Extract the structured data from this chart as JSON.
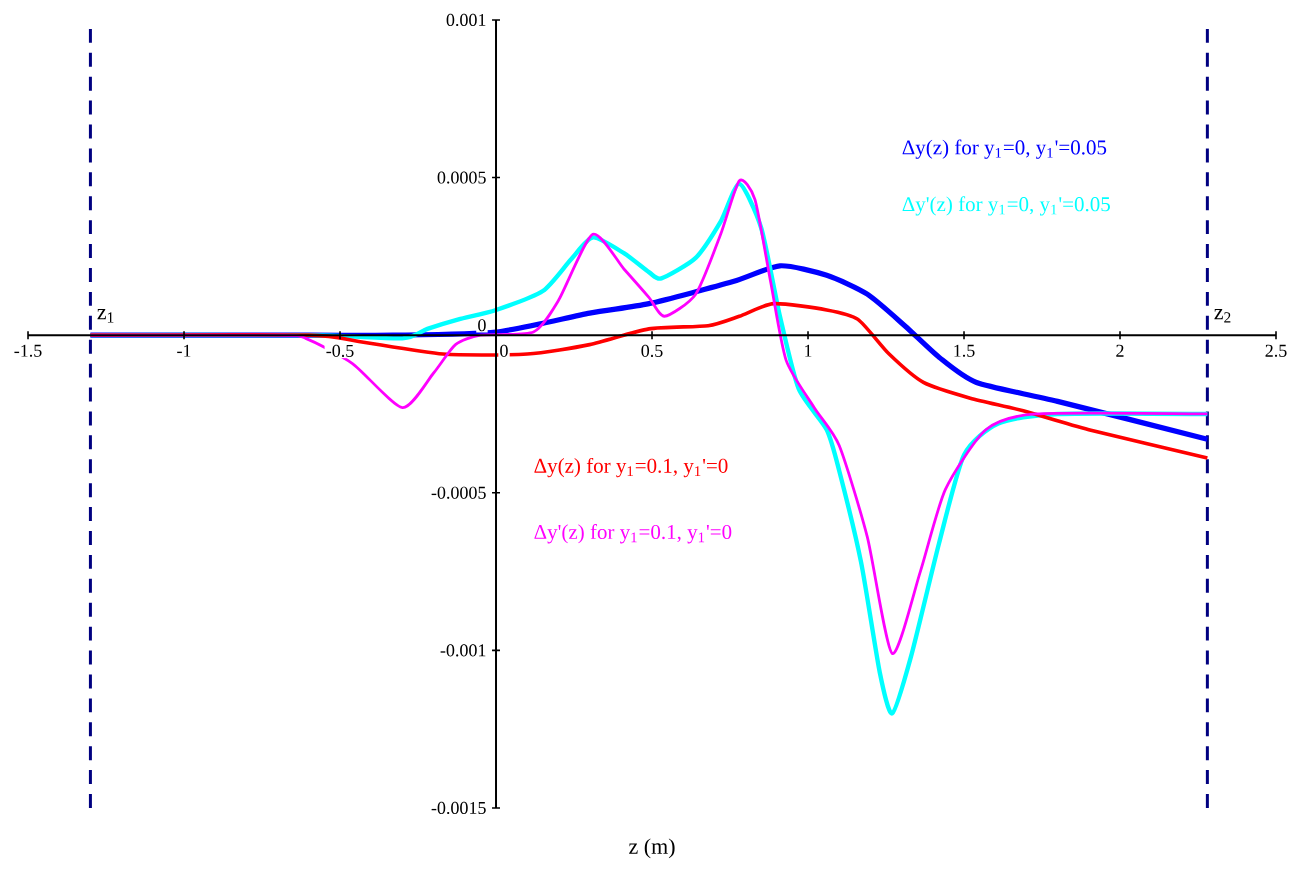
{
  "chart_data": {
    "type": "line",
    "xlabel": "z (m)",
    "xlim": [
      -1.5,
      2.5
    ],
    "ylim": [
      -0.0015,
      0.001
    ],
    "xticks": [
      -1.5,
      -1,
      -0.5,
      0,
      0.5,
      1,
      1.5,
      2,
      2.5
    ],
    "yticks": [
      -0.0015,
      -0.001,
      -0.0005,
      0,
      0.0005,
      0.001
    ],
    "grid": false,
    "marker": "none",
    "line_style": "solid",
    "ref_lines": [
      {
        "axis": "x",
        "value": -1.3,
        "label": "z$_{1}$",
        "color": "#000080",
        "line_style": "dashed"
      },
      {
        "axis": "x",
        "value": 2.28,
        "label": "z$_{2}$",
        "color": "#000080",
        "line_style": "dashed"
      }
    ],
    "series": [
      {
        "name": "Δy(z) for y$_{1}$=0, y$_{1}$'=0.05",
        "color": "#0000ff",
        "x": [
          -1.3,
          -0.6,
          -0.33,
          0,
          0.3,
          0.49,
          0.76,
          0.91,
          1.06,
          1.19,
          1.31,
          1.42,
          1.54,
          1.8,
          2.28
        ],
        "values": [
          0,
          0,
          0,
          1e-05,
          7e-05,
          0.0001,
          0.00017,
          0.00022,
          0.00019,
          0.00013,
          3e-05,
          -7e-05,
          -0.00015,
          -0.00021,
          -0.00033
        ]
      },
      {
        "name": "Δy'(z) for y$_{1}$=0, y$_{1}$'=0.05",
        "color": "#00ffff",
        "x": [
          -1.3,
          -0.6,
          -0.3,
          -0.22,
          -0.12,
          0,
          0.15,
          0.24,
          0.31,
          0.41,
          0.49,
          0.53,
          0.64,
          0.72,
          0.78,
          0.85,
          0.91,
          0.97,
          1.06,
          1.1,
          1.17,
          1.23,
          1.27,
          1.33,
          1.42,
          1.5,
          1.61,
          1.8,
          2.28
        ],
        "values": [
          0,
          0,
          -1e-05,
          2e-05,
          5e-05,
          8e-05,
          0.00014,
          0.00024,
          0.00031,
          0.00026,
          0.0002,
          0.00018,
          0.000245,
          0.00036,
          0.00048,
          0.00034,
          6e-05,
          -0.00017,
          -0.0003,
          -0.00043,
          -0.00072,
          -0.00107,
          -0.0012,
          -0.00102,
          -0.00066,
          -0.00038,
          -0.00028,
          -0.00025,
          -0.00025
        ]
      },
      {
        "name": "Δy(z) for y$_{1}$=0.1, y$_{1}$'=0",
        "color": "#ff0000",
        "x": [
          -1.3,
          -0.6,
          -0.44,
          -0.17,
          0.1,
          0.3,
          0.49,
          0.68,
          0.78,
          0.89,
          1.06,
          1.16,
          1.26,
          1.37,
          1.52,
          1.69,
          1.9,
          2.28
        ],
        "values": [
          0,
          0,
          -2e-05,
          -6e-05,
          -6e-05,
          -3e-05,
          2e-05,
          3e-05,
          6e-05,
          0.0001,
          8e-05,
          5e-05,
          -6e-05,
          -0.00015,
          -0.0002,
          -0.00024,
          -0.0003,
          -0.00039
        ]
      },
      {
        "name": "Δy'(z) for y$_{1}$=0.1, y$_{1}$'=0",
        "color": "#ff00ff",
        "x": [
          -1.3,
          -0.7,
          -0.61,
          -0.46,
          -0.3,
          -0.2,
          -0.13,
          -0.05,
          0.12,
          0.2,
          0.31,
          0.41,
          0.49,
          0.54,
          0.64,
          0.72,
          0.78,
          0.83,
          0.88,
          0.93,
          1.02,
          1.1,
          1.19,
          1.27,
          1.36,
          1.44,
          1.57,
          1.73,
          2.28
        ],
        "values": [
          0,
          0,
          -1e-05,
          -9e-05,
          -0.00023,
          -0.00012,
          -3e-05,
          0,
          1e-05,
          0.00011,
          0.00032,
          0.00021,
          0.00012,
          6e-05,
          0.00013,
          0.00032,
          0.00049,
          0.00043,
          0.00017,
          -8e-05,
          -0.00023,
          -0.00035,
          -0.00064,
          -0.00101,
          -0.00075,
          -0.00049,
          -0.0003,
          -0.00025,
          -0.00025
        ]
      }
    ]
  }
}
